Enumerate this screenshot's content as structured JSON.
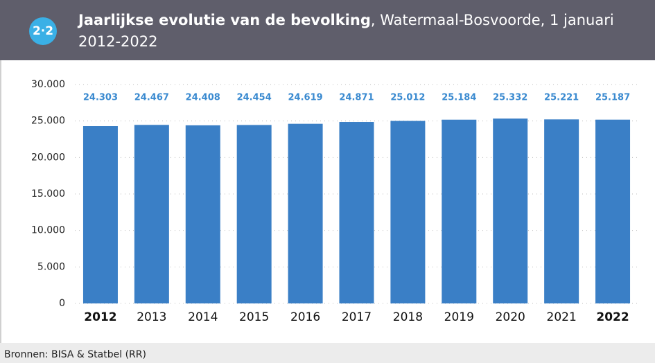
{
  "badge": "2·2",
  "chart_data": {
    "type": "bar",
    "title": "Jaarlijkse evolutie van de bevolking",
    "subtitle": ", Watermaal-Bosvoorde, 1 januari 2012-2022",
    "categories": [
      "2012",
      "2013",
      "2014",
      "2015",
      "2016",
      "2017",
      "2018",
      "2019",
      "2020",
      "2021",
      "2022"
    ],
    "values": [
      24303,
      24467,
      24408,
      24454,
      24619,
      24871,
      25012,
      25184,
      25332,
      25221,
      25187
    ],
    "value_labels": [
      "24.303",
      "24.467",
      "24.408",
      "24.454",
      "24.619",
      "24.871",
      "25.012",
      "25.184",
      "25.332",
      "25.221",
      "25.187"
    ],
    "color": "#3a7fc6",
    "ylim": [
      0,
      30000
    ],
    "yticks": [
      0,
      {
        "value": 5000,
        "label": "5.000"
      },
      {
        "value": 10000,
        "label": "10.000"
      },
      {
        "value": 15000,
        "label": "15.000"
      },
      {
        "value": 20000,
        "label": "20.000"
      },
      {
        "value": 25000,
        "label": "25.000"
      },
      {
        "value": 30000,
        "label": "30.000"
      }
    ],
    "grid": true
  },
  "source": "Bronnen: BISA & Statbel (RR)"
}
